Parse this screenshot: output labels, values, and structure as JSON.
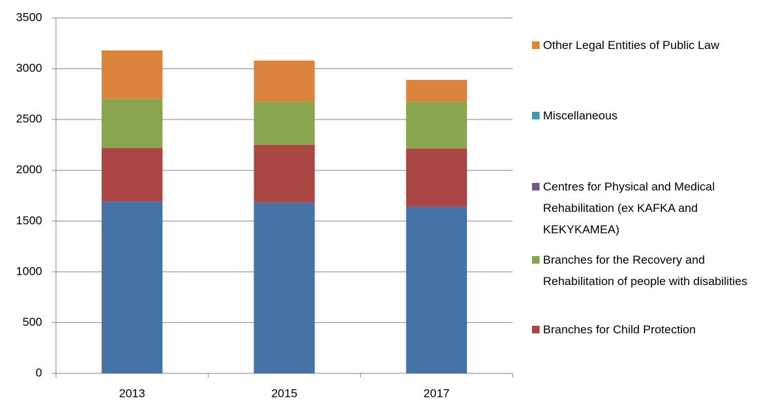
{
  "chart_data": {
    "type": "stacked_bar",
    "categories": [
      "2013",
      "2015",
      "2017"
    ],
    "series": [
      {
        "color": "#4572a7",
        "values": [
          1690,
          1680,
          1640
        ]
      },
      {
        "name": "Branches for Child Protection",
        "color": "#aa4643",
        "values": [
          530,
          570,
          575
        ]
      },
      {
        "name": "Branches for the Recovery and Rehabilitation of people with disabilities",
        "color": "#89a54e",
        "values": [
          480,
          425,
          460
        ]
      },
      {
        "name": "Centres for Physical and Medical Rehabilitation (ex KAFKA and KEKYKAMEA)",
        "color": "#71588f",
        "values": [
          0,
          0,
          0
        ]
      },
      {
        "name": "Miscellaneous",
        "color": "#4198af",
        "values": [
          0,
          0,
          0
        ]
      },
      {
        "name": "Other Legal Entities of Public Law",
        "color": "#db843d",
        "values": [
          480,
          405,
          215
        ]
      }
    ],
    "ylim": [
      0,
      3500
    ],
    "yticks": [
      0,
      500,
      1000,
      1500,
      2000,
      2500,
      3000,
      3500
    ],
    "grid": true,
    "legend": "right"
  }
}
